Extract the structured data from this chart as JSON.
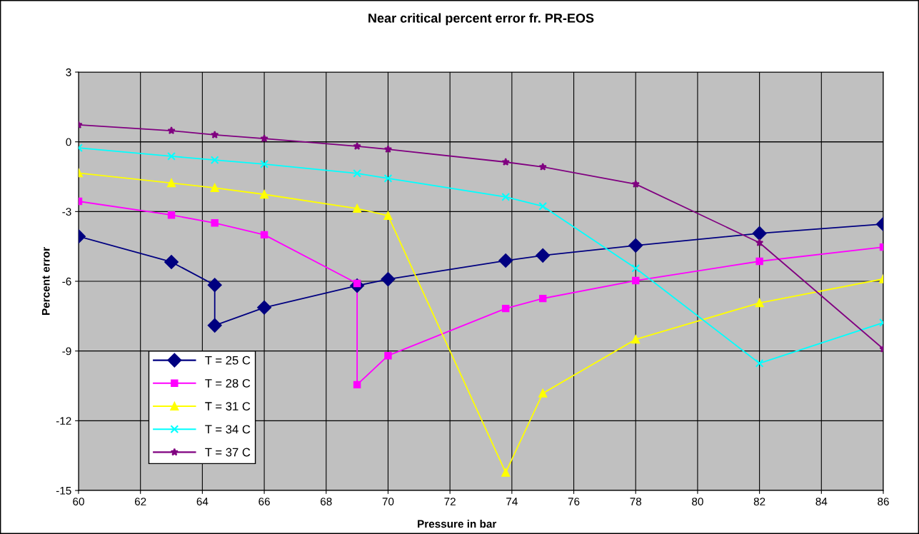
{
  "chart_data": {
    "type": "line",
    "title": "Near critical percent error fr. PR-EOS",
    "xlabel": "Pressure in bar",
    "ylabel": "Percent error",
    "xlim": [
      60,
      86
    ],
    "xticks": [
      60,
      62,
      64,
      66,
      68,
      70,
      72,
      74,
      76,
      78,
      80,
      82,
      84,
      86
    ],
    "ylim": [
      -15,
      3
    ],
    "yticks": [
      -15,
      -12,
      -9,
      -6,
      -3,
      0,
      3
    ],
    "grid": true,
    "legend": "bottom left",
    "line_style": "solid",
    "series": [
      {
        "name": "T = 25 C",
        "color": "#000080",
        "marker": "diamond",
        "x": [
          60,
          63,
          64.4,
          64.4,
          66,
          69,
          70,
          73.8,
          75,
          78,
          82,
          86
        ],
        "values": [
          -4.07,
          -5.17,
          -6.16,
          -7.9,
          -7.13,
          -6.19,
          -5.91,
          -5.11,
          -4.89,
          -4.46,
          -3.94,
          -3.54
        ]
      },
      {
        "name": "T = 28 C",
        "color": "#ff00ff",
        "marker": "square",
        "x": [
          60,
          63,
          64.4,
          66,
          69,
          69,
          70,
          73.8,
          75,
          78,
          82,
          86
        ],
        "values": [
          -2.56,
          -3.15,
          -3.49,
          -4.0,
          -6.09,
          -10.45,
          -9.2,
          -7.17,
          -6.74,
          -5.97,
          -5.14,
          -4.53
        ]
      },
      {
        "name": "T = 31 C",
        "color": "#ffff00",
        "marker": "triangle",
        "x": [
          60,
          63,
          64.4,
          66,
          69,
          70,
          73.8,
          75,
          78,
          82,
          86
        ],
        "values": [
          -1.34,
          -1.77,
          -1.98,
          -2.26,
          -2.87,
          -3.18,
          -14.23,
          -10.82,
          -8.5,
          -6.93,
          -5.9
        ]
      },
      {
        "name": "T = 34 C",
        "color": "#00ffff",
        "marker": "cross",
        "x": [
          60,
          63,
          64.4,
          66,
          69,
          70,
          73.8,
          75,
          78,
          82,
          86
        ],
        "values": [
          -0.26,
          -0.62,
          -0.78,
          -0.96,
          -1.36,
          -1.57,
          -2.37,
          -2.77,
          -5.44,
          -9.53,
          -7.78
        ]
      },
      {
        "name": "T = 37 C",
        "color": "#800080",
        "marker": "star",
        "x": [
          60,
          63,
          64.4,
          66,
          69,
          70,
          73.8,
          75,
          78,
          82,
          86
        ],
        "values": [
          0.73,
          0.48,
          0.3,
          0.14,
          -0.19,
          -0.32,
          -0.87,
          -1.08,
          -1.82,
          -4.34,
          -8.91
        ]
      }
    ]
  }
}
